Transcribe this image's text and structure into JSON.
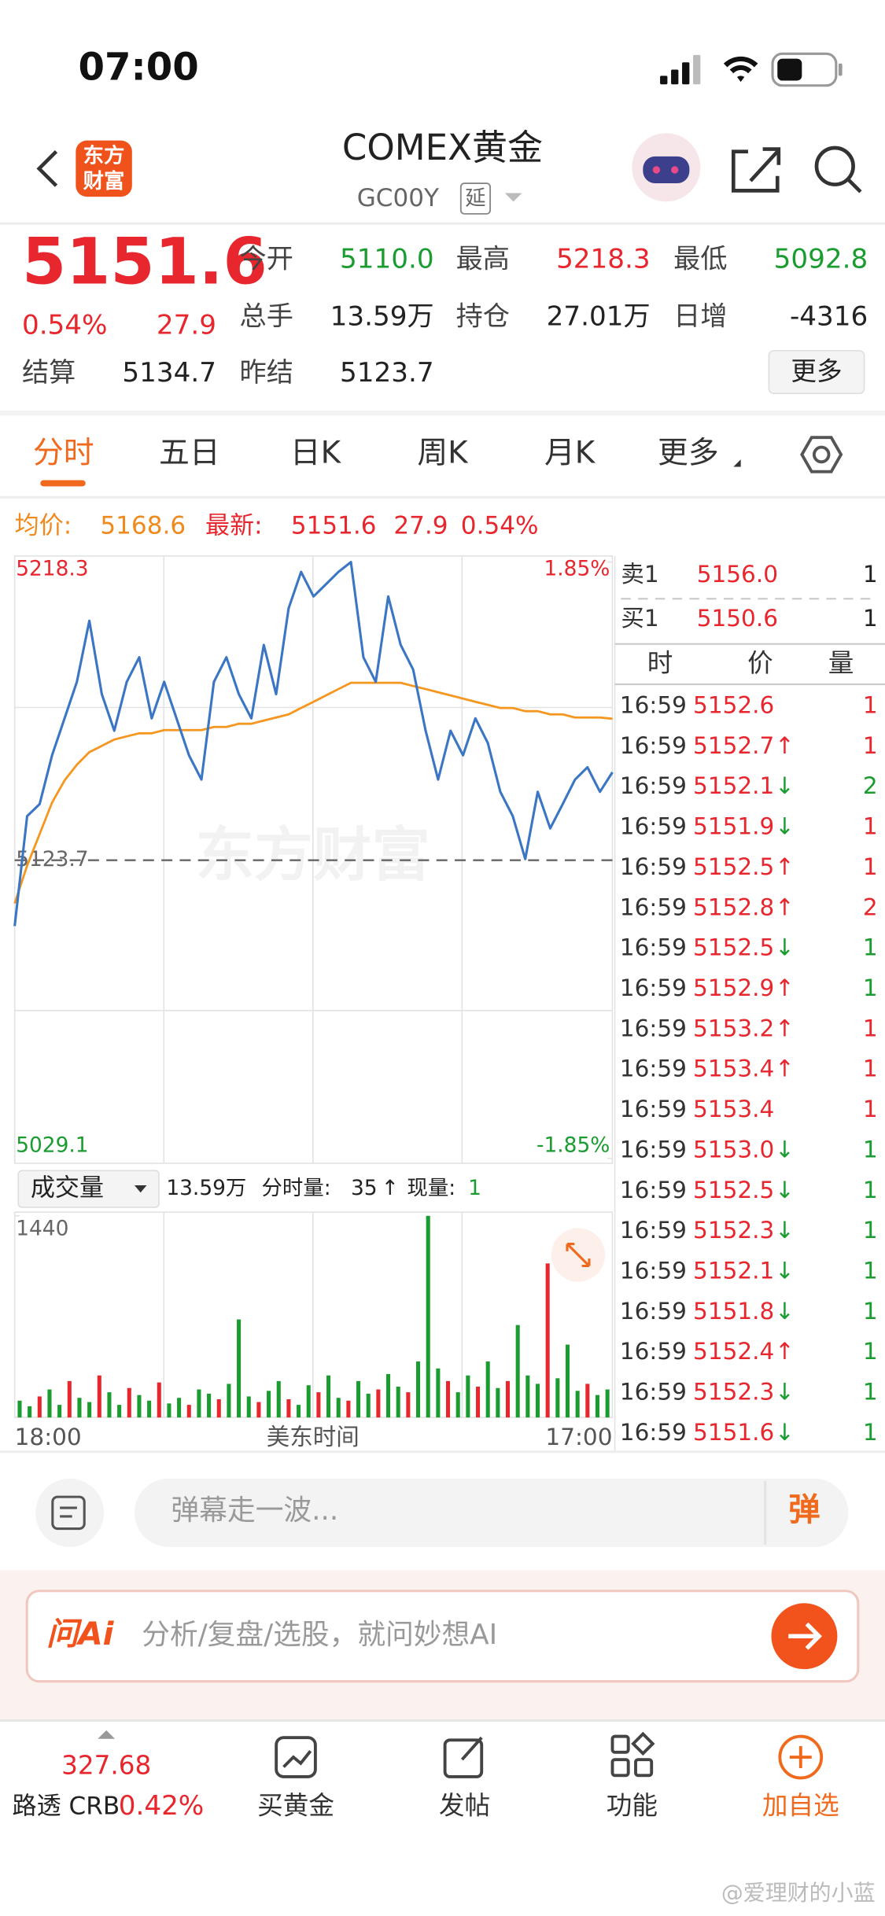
{
  "status": {
    "time": "07:00"
  },
  "header": {
    "logo": [
      "东方",
      "财富"
    ],
    "title": "COMEX黄金",
    "code": "GC00Y",
    "tag": "延"
  },
  "quote": {
    "price": "5151.6",
    "pct": "0.54%",
    "change": "27.9",
    "more": "更多",
    "fields": [
      {
        "label": "今开",
        "value": "5110.0",
        "color": "#1a9c30"
      },
      {
        "label": "最高",
        "value": "5218.3",
        "color": "#e8262d"
      },
      {
        "label": "最低",
        "value": "5092.8",
        "color": "#1a9c30"
      },
      {
        "label": "总手",
        "value": "13.59万",
        "color": "#222222"
      },
      {
        "label": "持仓",
        "value": "27.01万",
        "color": "#222222"
      },
      {
        "label": "日增",
        "value": "-4316",
        "color": "#222222"
      },
      {
        "label": "结算",
        "value": "5134.7",
        "color": "#222222"
      },
      {
        "label": "昨结",
        "value": "5123.7",
        "color": "#222222"
      }
    ]
  },
  "tabs": [
    "分时",
    "五日",
    "日K",
    "周K",
    "月K",
    "更多"
  ],
  "summary": {
    "avg_label": "均价:",
    "avg": "5168.6",
    "latest_label": "最新:",
    "latest": "5151.6",
    "change": "27.9",
    "pct": "0.54%"
  },
  "chart_data": [
    {
      "type": "line",
      "watermark": "东方财富",
      "ylim": [
        5029.1,
        5218.3
      ],
      "yticks": [
        5218.3,
        5123.7,
        5029.1
      ],
      "y2lim": [
        -1.85,
        1.85
      ],
      "y2ticks": [
        {
          "value": 1.85,
          "label": "1.85%"
        },
        {
          "value": -1.85,
          "label": "-1.85%"
        }
      ],
      "x_labels": [
        "18:00",
        "17:00"
      ],
      "xlabel": "美东时间",
      "series": [
        {
          "color": "#3a76c4",
          "values": [
            5102.8,
            5137.7,
            5141.5,
            5157.0,
            5168.7,
            5180.3,
            5199.7,
            5176.4,
            5164.8,
            5180.3,
            5188.1,
            5168.7,
            5180.3,
            5168.7,
            5157.0,
            5149.3,
            5180.3,
            5188.1,
            5176.4,
            5168.7,
            5192.0,
            5176.4,
            5203.6,
            5215.2,
            5207.4,
            5211.3,
            5215.2,
            5218.3,
            5188.1,
            5180.3,
            5207.4,
            5192.0,
            5184.2,
            5164.8,
            5149.3,
            5164.8,
            5157.0,
            5168.7,
            5160.9,
            5145.4,
            5137.7,
            5124.1,
            5145.4,
            5133.8,
            5141.5,
            5149.3,
            5153.2,
            5145.4,
            5151.6
          ]
        },
        {
          "color": "#f5961f",
          "values": [
            5110,
            5122,
            5132,
            5142,
            5149,
            5154,
            5158,
            5160,
            5162,
            5163,
            5164,
            5164,
            5165,
            5165,
            5165,
            5165,
            5166,
            5166,
            5167,
            5167,
            5168,
            5169,
            5170,
            5172,
            5174,
            5176,
            5178,
            5180,
            5180,
            5180,
            5180,
            5180,
            5179,
            5178,
            5177,
            5176,
            5175,
            5174,
            5173,
            5172,
            5172,
            5171,
            5171,
            5170,
            5170,
            5169,
            5169,
            5169,
            5168.6
          ]
        }
      ]
    },
    {
      "type": "bar",
      "selector": "成交量",
      "ylim": [
        0,
        1440
      ],
      "yticks": [
        1440
      ],
      "values": [
        120,
        80,
        150,
        200,
        90,
        260,
        140,
        110,
        300,
        180,
        90,
        210,
        160,
        120,
        250,
        100,
        140,
        90,
        200,
        170,
        130,
        240,
        700,
        150,
        110,
        190,
        260,
        130,
        90,
        230,
        180,
        300,
        140,
        120,
        260,
        170,
        200,
        310,
        220,
        180,
        400,
        1440,
        350,
        260,
        180,
        300,
        220,
        400,
        210,
        260,
        660,
        300,
        240,
        1100,
        280,
        520,
        190,
        240,
        160,
        200
      ],
      "colors": [
        "#1a9c30",
        "#1a9c30",
        "#e8262d",
        "#1a9c30",
        "#1a9c30",
        "#e8262d",
        "#1a9c30",
        "#1a9c30",
        "#e8262d",
        "#1a9c30",
        "#1a9c30",
        "#e8262d",
        "#1a9c30",
        "#1a9c30",
        "#e8262d",
        "#1a9c30",
        "#1a9c30",
        "#e8262d",
        "#1a9c30",
        "#1a9c30",
        "#e8262d",
        "#1a9c30",
        "#1a9c30",
        "#1a9c30",
        "#e8262d",
        "#1a9c30",
        "#1a9c30",
        "#e8262d",
        "#1a9c30",
        "#1a9c30",
        "#e8262d",
        "#1a9c30",
        "#1a9c30",
        "#e8262d",
        "#1a9c30",
        "#1a9c30",
        "#e8262d",
        "#1a9c30",
        "#1a9c30",
        "#e8262d",
        "#1a9c30",
        "#1a9c30",
        "#1a9c30",
        "#e8262d",
        "#1a9c30",
        "#1a9c30",
        "#e8262d",
        "#1a9c30",
        "#1a9c30",
        "#e8262d",
        "#1a9c30",
        "#1a9c30",
        "#1a9c30",
        "#e8262d",
        "#1a9c30",
        "#1a9c30",
        "#1a9c30",
        "#e8262d",
        "#1a9c30",
        "#1a9c30"
      ]
    }
  ],
  "volume_info": {
    "total": "13.59万",
    "tick_label": "分时量:",
    "tick_value": "35",
    "tick_arrow": "↑",
    "now_label": "现量:",
    "now_value": "1"
  },
  "orderbook": {
    "sell": {
      "label": "卖1",
      "price": "5156.0",
      "qty": "1"
    },
    "buy": {
      "label": "买1",
      "price": "5150.6",
      "qty": "1"
    },
    "columns": [
      "时",
      "价",
      "量"
    ],
    "trades": [
      {
        "time": "16:59",
        "price": "5152.6",
        "qty": "1",
        "qty_color": "#e8262d"
      },
      {
        "time": "16:59",
        "price": "5152.7",
        "arrow": "↑",
        "qty": "1",
        "qty_color": "#e8262d"
      },
      {
        "time": "16:59",
        "price": "5152.1",
        "arrow": "↓",
        "qty": "2",
        "qty_color": "#1a9c30"
      },
      {
        "time": "16:59",
        "price": "5151.9",
        "arrow": "↓",
        "qty": "1",
        "qty_color": "#e8262d"
      },
      {
        "time": "16:59",
        "price": "5152.5",
        "arrow": "↑",
        "qty": "1",
        "qty_color": "#e8262d"
      },
      {
        "time": "16:59",
        "price": "5152.8",
        "arrow": "↑",
        "qty": "2",
        "qty_color": "#e8262d"
      },
      {
        "time": "16:59",
        "price": "5152.5",
        "arrow": "↓",
        "qty": "1",
        "qty_color": "#1a9c30"
      },
      {
        "time": "16:59",
        "price": "5152.9",
        "arrow": "↑",
        "qty": "1",
        "qty_color": "#1a9c30"
      },
      {
        "time": "16:59",
        "price": "5153.2",
        "arrow": "↑",
        "qty": "1",
        "qty_color": "#e8262d"
      },
      {
        "time": "16:59",
        "price": "5153.4",
        "arrow": "↑",
        "qty": "1",
        "qty_color": "#e8262d"
      },
      {
        "time": "16:59",
        "price": "5153.4",
        "qty": "1",
        "qty_color": "#e8262d"
      },
      {
        "time": "16:59",
        "price": "5153.0",
        "arrow": "↓",
        "qty": "1",
        "qty_color": "#1a9c30"
      },
      {
        "time": "16:59",
        "price": "5152.5",
        "arrow": "↓",
        "qty": "1",
        "qty_color": "#1a9c30"
      },
      {
        "time": "16:59",
        "price": "5152.3",
        "arrow": "↓",
        "qty": "1",
        "qty_color": "#1a9c30"
      },
      {
        "time": "16:59",
        "price": "5152.1",
        "arrow": "↓",
        "qty": "1",
        "qty_color": "#1a9c30"
      },
      {
        "time": "16:59",
        "price": "5151.8",
        "arrow": "↓",
        "qty": "1",
        "qty_color": "#1a9c30"
      },
      {
        "time": "16:59",
        "price": "5152.4",
        "arrow": "↑",
        "qty": "1",
        "qty_color": "#1a9c30"
      },
      {
        "time": "16:59",
        "price": "5152.3",
        "arrow": "↓",
        "qty": "1",
        "qty_color": "#1a9c30"
      },
      {
        "time": "16:59",
        "price": "5151.6",
        "arrow": "↓",
        "qty": "1",
        "qty_color": "#1a9c30"
      }
    ]
  },
  "comment": {
    "placeholder": "弹幕走一波...",
    "button": "弹"
  },
  "ai": {
    "brand": "问Ai",
    "placeholder": "分析/复盘/选股，就问妙想AI"
  },
  "bottom_nav": {
    "index_value": "327.68",
    "index_name": "路透 CRB",
    "index_pct": "0.42%",
    "items": [
      "买黄金",
      "发帖",
      "功能",
      "加自选"
    ]
  },
  "watermark": "@爱理财的小蓝"
}
